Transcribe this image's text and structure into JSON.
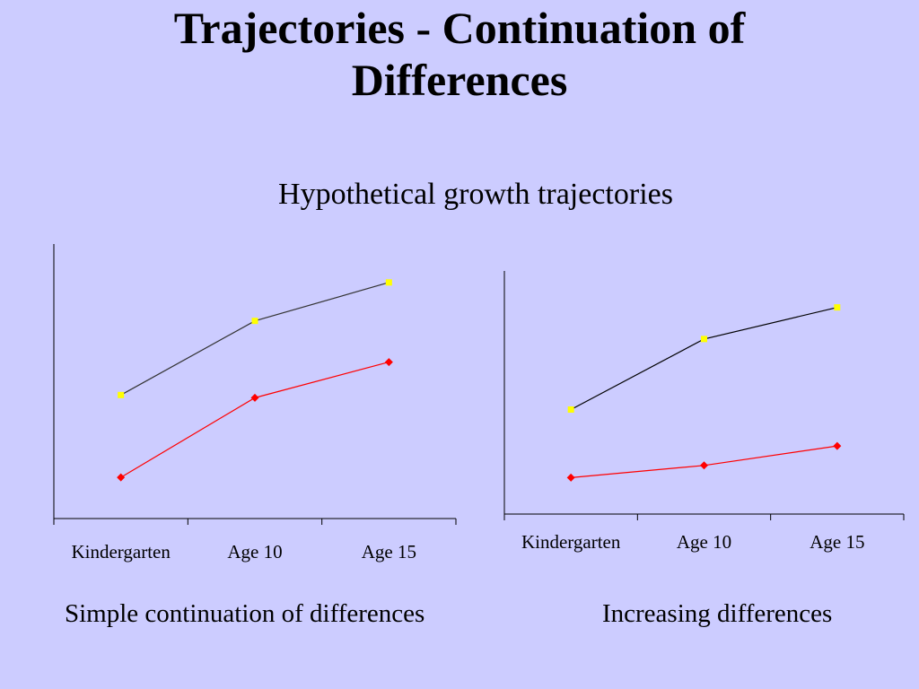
{
  "slide": {
    "title_line1": "Trajectories - Continuation of",
    "title_line2": "Differences",
    "subtitle": "Hypothetical growth trajectories"
  },
  "colors": {
    "background": "#ccccff",
    "upper_line": "#333333",
    "upper_marker": "#ffff00",
    "lower_line": "#ff0000",
    "lower_marker": "#ff0000"
  },
  "chart_data": [
    {
      "type": "line",
      "title": "",
      "caption": "Simple continuation of differences",
      "xlabel": "",
      "ylabel": "",
      "categories": [
        "Kindergarten",
        "Age 10",
        "Age 15"
      ],
      "ylim": [
        0,
        100
      ],
      "grid": false,
      "legend": "none",
      "series": [
        {
          "values": [
            45,
            72,
            86
          ],
          "color": "#333333",
          "marker": "square",
          "marker_color": "#ffff00"
        },
        {
          "values": [
            15,
            44,
            57
          ],
          "color": "#ff0000",
          "marker": "diamond",
          "marker_color": "#ff0000"
        }
      ]
    },
    {
      "type": "line",
      "title": "",
      "caption": "Increasing differences",
      "xlabel": "",
      "ylabel": "",
      "categories": [
        "Kindergarten",
        "Age 10",
        "Age 15"
      ],
      "ylim": [
        0,
        100
      ],
      "grid": false,
      "legend": "none",
      "series": [
        {
          "values": [
            43,
            72,
            85
          ],
          "color": "#000000",
          "marker": "square",
          "marker_color": "#ffff00"
        },
        {
          "values": [
            15,
            20,
            28
          ],
          "color": "#ff0000",
          "marker": "diamond",
          "marker_color": "#ff0000"
        }
      ]
    }
  ]
}
